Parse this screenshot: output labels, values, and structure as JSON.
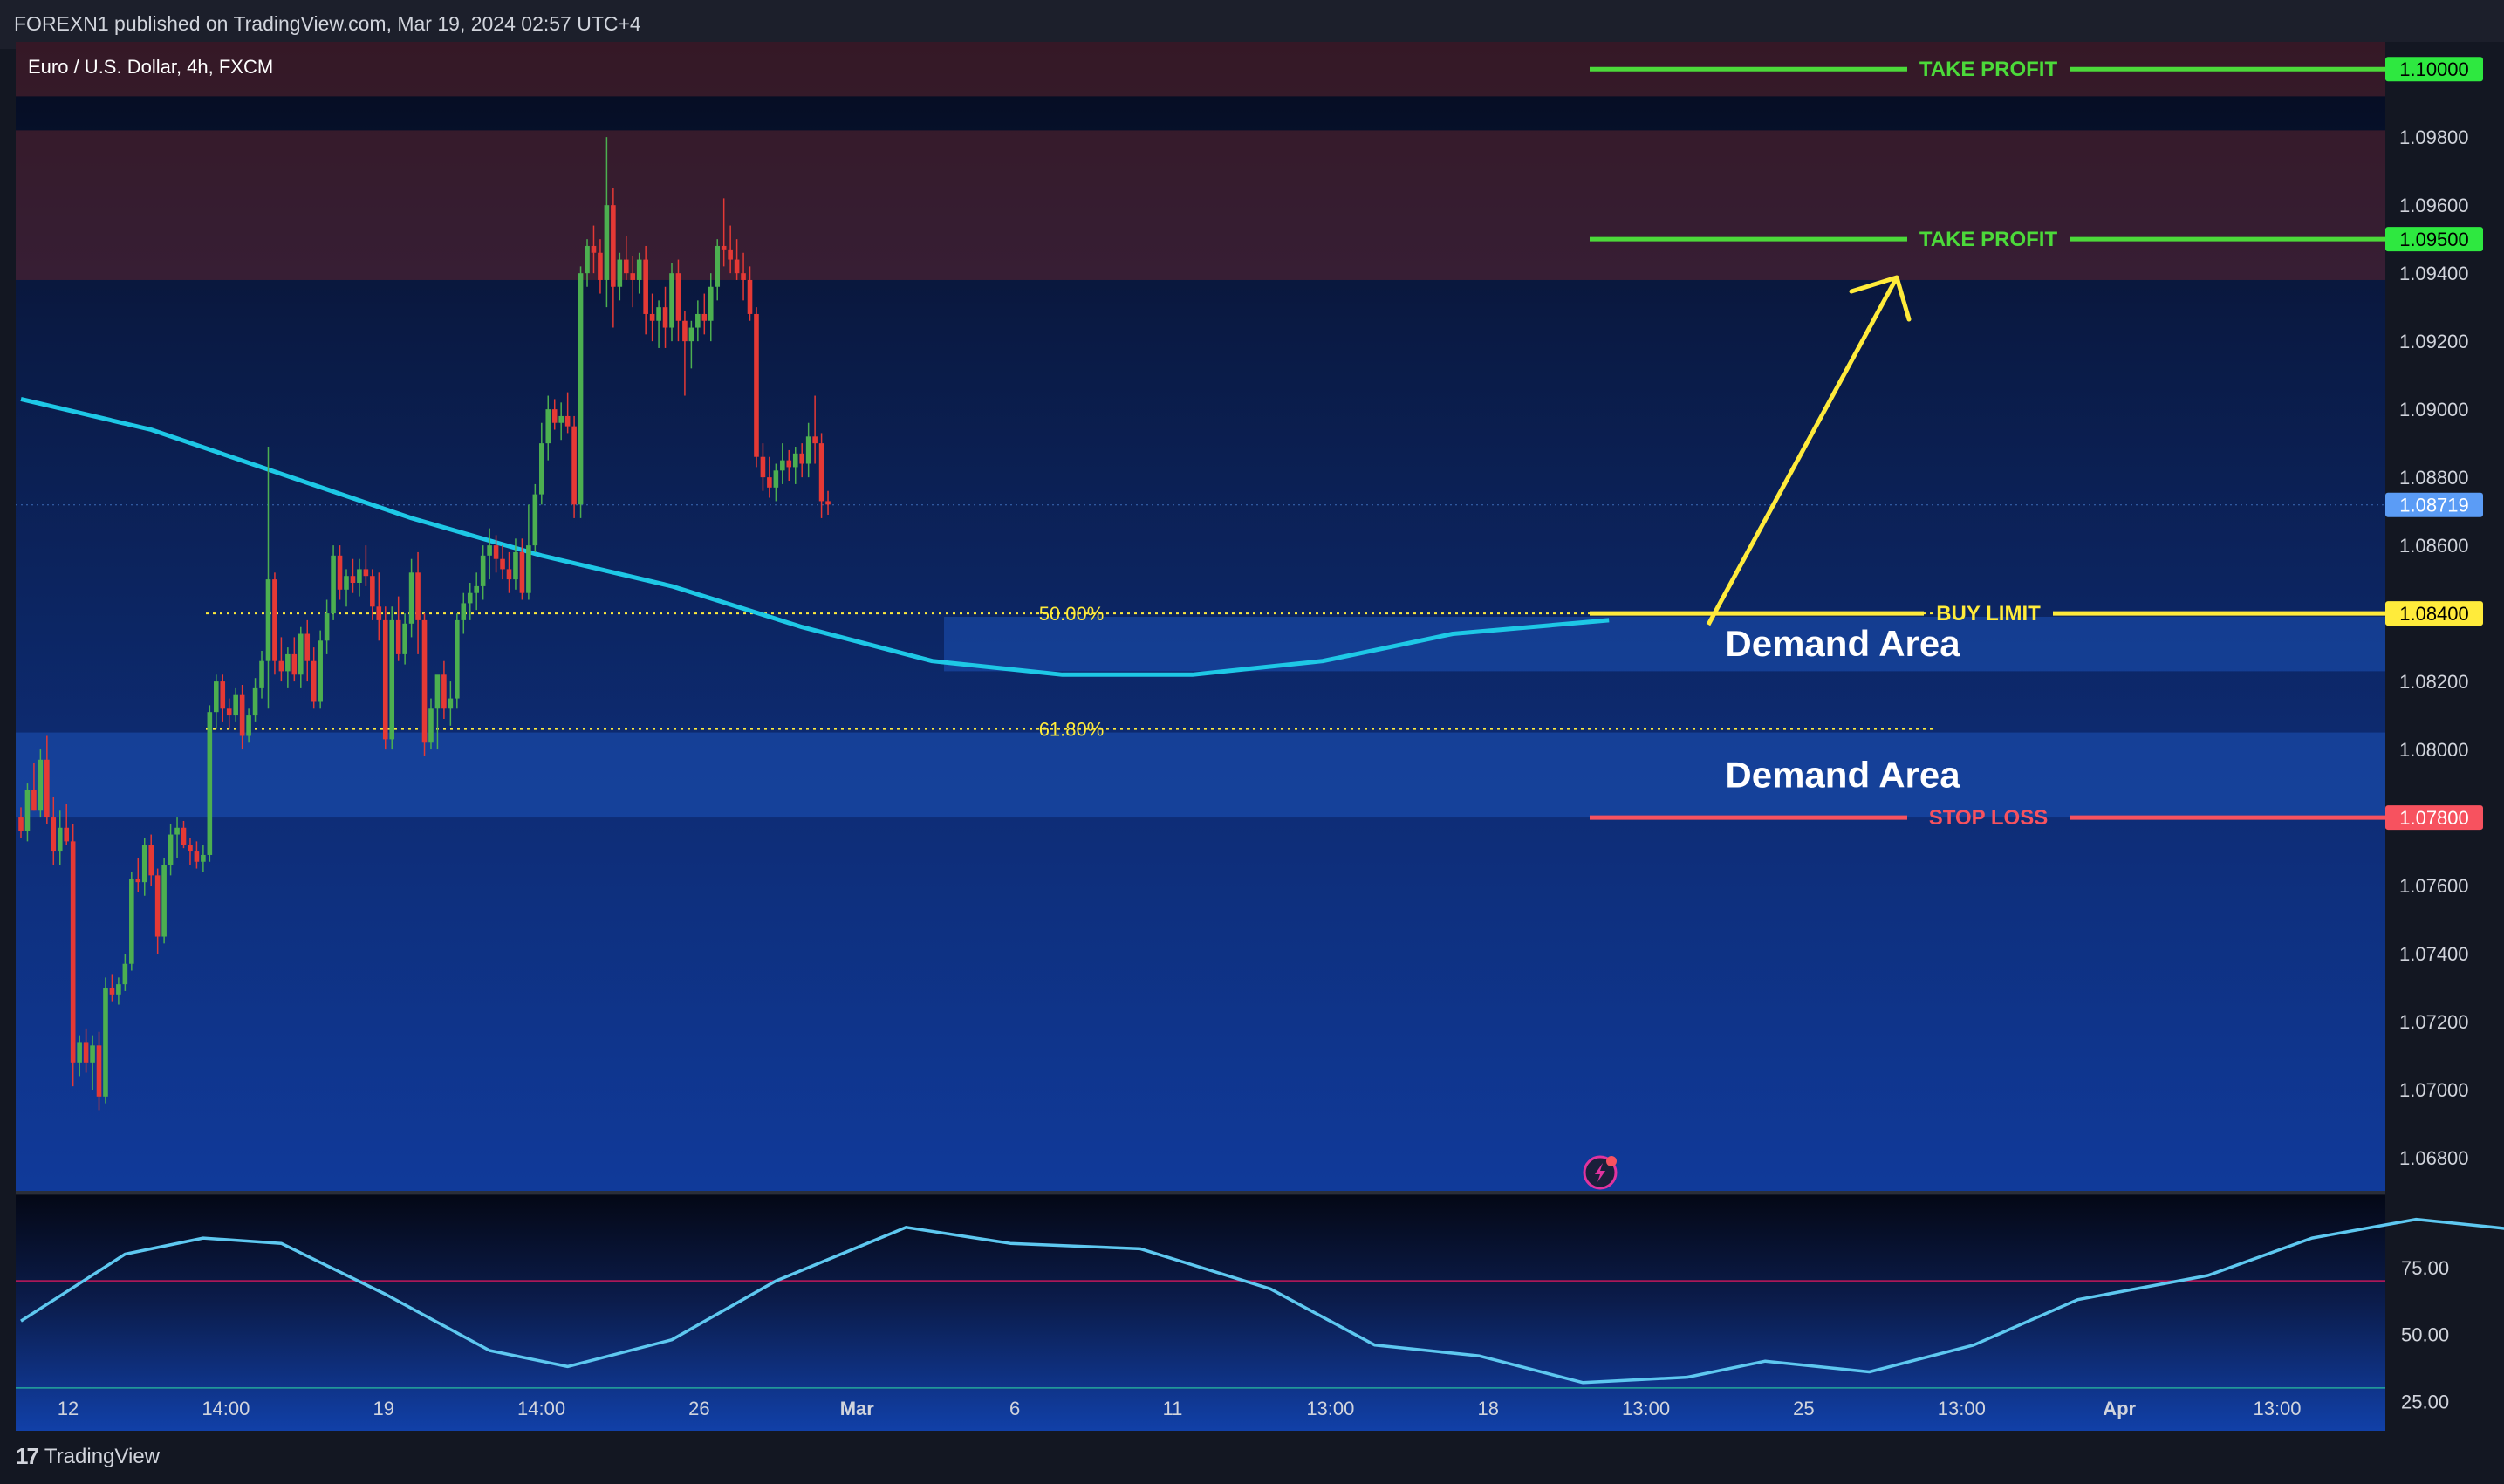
{
  "header": {
    "publisher_line": "FOREXN1 published on TradingView.com, Mar 19, 2024 02:57 UTC+4"
  },
  "footer": {
    "brand": "TradingView",
    "logo_icon": "tradingview-logo-icon"
  },
  "chart_data": {
    "type": "candlestick",
    "symbol_title": "Euro / U.S. Dollar, 4h, FXCM",
    "price_axis": {
      "ylim": [
        1.067,
        1.1008
      ],
      "ticks": [
        "1.09800",
        "1.09600",
        "1.09400",
        "1.09200",
        "1.09000",
        "1.08800",
        "1.08600",
        "1.08200",
        "1.08000",
        "1.07600",
        "1.07400",
        "1.07200",
        "1.07000",
        "1.06800"
      ]
    },
    "time_axis": {
      "labels": [
        "12",
        "14:00",
        "19",
        "14:00",
        "26",
        "Mar",
        "6",
        "11",
        "13:00",
        "18",
        "13:00",
        "25",
        "13:00",
        "Apr",
        "13:00"
      ],
      "bold_labels": [
        "Mar",
        "Apr"
      ]
    },
    "price_labels": [
      {
        "value": 1.1,
        "text": "1.10000",
        "color": "#2ee840",
        "text_color": "#000000"
      },
      {
        "value": 1.095,
        "text": "1.09500",
        "color": "#2ee840",
        "text_color": "#000000"
      },
      {
        "value": 1.08719,
        "text": "1.08719",
        "color": "#5b9cf6",
        "text_color": "#ffffff"
      },
      {
        "value": 1.084,
        "text": "1.08400",
        "color": "#ffeb3b",
        "text_color": "#000000"
      },
      {
        "value": 1.078,
        "text": "1.07800",
        "color": "#f7525f",
        "text_color": "#ffffff"
      }
    ],
    "levels": [
      {
        "label": "TAKE PROFIT",
        "value": 1.1,
        "color": "#4cd93a"
      },
      {
        "label": "TAKE PROFIT",
        "value": 1.095,
        "color": "#4cd93a"
      },
      {
        "label": "BUY LIMIT",
        "value": 1.084,
        "color": "#ffeb3b"
      },
      {
        "label": "STOP LOSS",
        "value": 1.078,
        "color": "#f7525f"
      }
    ],
    "zones": [
      {
        "label": "",
        "kind": "supply",
        "from": 1.0992,
        "to": 1.1008
      },
      {
        "label": "",
        "kind": "supply",
        "from": 1.0938,
        "to": 1.0982
      },
      {
        "label": "Demand Area",
        "kind": "demand",
        "from": 1.0823,
        "to": 1.0839
      },
      {
        "label": "Demand Area",
        "kind": "demand",
        "from": 1.078,
        "to": 1.0805
      }
    ],
    "fib_levels": [
      {
        "label": "50.00%",
        "value": 1.084
      },
      {
        "label": "61.80%",
        "value": 1.0806
      }
    ],
    "candles": [
      [
        1.078,
        1.0783,
        1.0774,
        1.0776
      ],
      [
        1.0776,
        1.079,
        1.0773,
        1.0788
      ],
      [
        1.0788,
        1.0796,
        1.0782,
        1.0782
      ],
      [
        1.0782,
        1.08,
        1.078,
        1.0797
      ],
      [
        1.0797,
        1.0804,
        1.0778,
        1.078
      ],
      [
        1.078,
        1.0786,
        1.0766,
        1.077
      ],
      [
        1.077,
        1.0782,
        1.0766,
        1.0777
      ],
      [
        1.0777,
        1.0784,
        1.0772,
        1.0773
      ],
      [
        1.0773,
        1.0778,
        1.0701,
        1.0708
      ],
      [
        1.0708,
        1.0716,
        1.0704,
        1.0714
      ],
      [
        1.0714,
        1.0718,
        1.0705,
        1.0708
      ],
      [
        1.0708,
        1.0716,
        1.07,
        1.0713
      ],
      [
        1.0713,
        1.0717,
        1.0694,
        1.0698
      ],
      [
        1.0698,
        1.0733,
        1.0696,
        1.073
      ],
      [
        1.073,
        1.0734,
        1.0726,
        1.0728
      ],
      [
        1.0728,
        1.0733,
        1.0725,
        1.0731
      ],
      [
        1.0731,
        1.074,
        1.0729,
        1.0737
      ],
      [
        1.0737,
        1.0764,
        1.0735,
        1.0762
      ],
      [
        1.0762,
        1.0768,
        1.0758,
        1.0761
      ],
      [
        1.0761,
        1.0774,
        1.0757,
        1.0772
      ],
      [
        1.0772,
        1.0775,
        1.076,
        1.0763
      ],
      [
        1.0763,
        1.0765,
        1.074,
        1.0745
      ],
      [
        1.0745,
        1.0768,
        1.0743,
        1.0766
      ],
      [
        1.0766,
        1.0778,
        1.0763,
        1.0775
      ],
      [
        1.0775,
        1.078,
        1.0768,
        1.0777
      ],
      [
        1.0777,
        1.0779,
        1.0771,
        1.0772
      ],
      [
        1.0772,
        1.0774,
        1.0766,
        1.077
      ],
      [
        1.077,
        1.0773,
        1.0765,
        1.0767
      ],
      [
        1.0767,
        1.0772,
        1.0764,
        1.0769
      ],
      [
        1.0769,
        1.0813,
        1.0767,
        1.0811
      ],
      [
        1.0811,
        1.0822,
        1.0806,
        1.082
      ],
      [
        1.082,
        1.0822,
        1.0808,
        1.0812
      ],
      [
        1.0812,
        1.0815,
        1.0806,
        1.081
      ],
      [
        1.081,
        1.0818,
        1.0808,
        1.0816
      ],
      [
        1.0816,
        1.0819,
        1.08,
        1.0804
      ],
      [
        1.0804,
        1.0812,
        1.0802,
        1.081
      ],
      [
        1.081,
        1.0821,
        1.0808,
        1.0818
      ],
      [
        1.0818,
        1.0829,
        1.0815,
        1.0826
      ],
      [
        1.0826,
        1.0889,
        1.0812,
        1.085
      ],
      [
        1.085,
        1.0852,
        1.0822,
        1.0826
      ],
      [
        1.0826,
        1.0833,
        1.082,
        1.0823
      ],
      [
        1.0823,
        1.083,
        1.0818,
        1.0828
      ],
      [
        1.0828,
        1.0833,
        1.082,
        1.0822
      ],
      [
        1.0822,
        1.0836,
        1.0818,
        1.0834
      ],
      [
        1.0834,
        1.0838,
        1.082,
        1.0826
      ],
      [
        1.0826,
        1.083,
        1.0812,
        1.0814
      ],
      [
        1.0814,
        1.0835,
        1.0812,
        1.0832
      ],
      [
        1.0832,
        1.0844,
        1.0828,
        1.084
      ],
      [
        1.084,
        1.086,
        1.0838,
        1.0857
      ],
      [
        1.0857,
        1.086,
        1.0844,
        1.0847
      ],
      [
        1.0847,
        1.0853,
        1.0842,
        1.0851
      ],
      [
        1.0851,
        1.0856,
        1.0846,
        1.0849
      ],
      [
        1.0849,
        1.0856,
        1.0845,
        1.0853
      ],
      [
        1.0853,
        1.086,
        1.0848,
        1.0851
      ],
      [
        1.0851,
        1.0853,
        1.0838,
        1.0842
      ],
      [
        1.0842,
        1.0852,
        1.0832,
        1.0838
      ],
      [
        1.0838,
        1.0842,
        1.08,
        1.0803
      ],
      [
        1.0803,
        1.0842,
        1.08,
        1.0838
      ],
      [
        1.0838,
        1.0845,
        1.0826,
        1.0828
      ],
      [
        1.0828,
        1.084,
        1.0825,
        1.0837
      ],
      [
        1.0837,
        1.0856,
        1.0833,
        1.0852
      ],
      [
        1.0852,
        1.0858,
        1.0828,
        1.0838
      ],
      [
        1.0838,
        1.084,
        1.0798,
        1.0802
      ],
      [
        1.0802,
        1.0815,
        1.08,
        1.0812
      ],
      [
        1.0812,
        1.082,
        1.08,
        1.0822
      ],
      [
        1.0822,
        1.0826,
        1.0809,
        1.0812
      ],
      [
        1.0812,
        1.082,
        1.0807,
        1.0815
      ],
      [
        1.0815,
        1.084,
        1.0812,
        1.0838
      ],
      [
        1.0838,
        1.0846,
        1.0834,
        1.0843
      ],
      [
        1.0843,
        1.0849,
        1.0838,
        1.0846
      ],
      [
        1.0846,
        1.0852,
        1.0841,
        1.0848
      ],
      [
        1.0848,
        1.086,
        1.0844,
        1.0857
      ],
      [
        1.0857,
        1.0865,
        1.085,
        1.086
      ],
      [
        1.086,
        1.0863,
        1.0852,
        1.0856
      ],
      [
        1.0856,
        1.086,
        1.085,
        1.0853
      ],
      [
        1.0853,
        1.0858,
        1.0846,
        1.085
      ],
      [
        1.085,
        1.0862,
        1.0847,
        1.0858
      ],
      [
        1.0858,
        1.0862,
        1.0844,
        1.0846
      ],
      [
        1.0846,
        1.0872,
        1.0844,
        1.086
      ],
      [
        1.086,
        1.0878,
        1.0858,
        1.0875
      ],
      [
        1.0875,
        1.0896,
        1.0872,
        1.089
      ],
      [
        1.089,
        1.0904,
        1.0885,
        1.09
      ],
      [
        1.09,
        1.0903,
        1.0894,
        1.0896
      ],
      [
        1.0896,
        1.0902,
        1.0891,
        1.0898
      ],
      [
        1.0898,
        1.0905,
        1.0893,
        1.0895
      ],
      [
        1.0895,
        1.0898,
        1.0868,
        1.0872
      ],
      [
        1.0872,
        1.0942,
        1.0868,
        1.094
      ],
      [
        1.094,
        1.095,
        1.0936,
        1.0948
      ],
      [
        1.0948,
        1.0954,
        1.094,
        1.0946
      ],
      [
        1.0946,
        1.095,
        1.0934,
        1.0938
      ],
      [
        1.0938,
        1.098,
        1.093,
        1.096
      ],
      [
        1.096,
        1.0965,
        1.0924,
        1.0936
      ],
      [
        1.0936,
        1.0946,
        1.0932,
        1.0944
      ],
      [
        1.0944,
        1.0951,
        1.0938,
        1.094
      ],
      [
        1.094,
        1.0945,
        1.093,
        1.0938
      ],
      [
        1.0938,
        1.0946,
        1.0934,
        1.0944
      ],
      [
        1.0944,
        1.0948,
        1.0922,
        1.0928
      ],
      [
        1.0928,
        1.0934,
        1.092,
        1.0926
      ],
      [
        1.0926,
        1.0932,
        1.0918,
        1.093
      ],
      [
        1.093,
        1.0936,
        1.0918,
        1.0924
      ],
      [
        1.0924,
        1.0943,
        1.092,
        1.094
      ],
      [
        1.094,
        1.0944,
        1.092,
        1.0926
      ],
      [
        1.0926,
        1.0929,
        1.0904,
        1.092
      ],
      [
        1.092,
        1.0926,
        1.0912,
        1.0924
      ],
      [
        1.0924,
        1.0932,
        1.092,
        1.0928
      ],
      [
        1.0928,
        1.0934,
        1.0922,
        1.0926
      ],
      [
        1.0926,
        1.094,
        1.092,
        1.0936
      ],
      [
        1.0936,
        1.095,
        1.0932,
        1.0948
      ],
      [
        1.0948,
        1.0962,
        1.0942,
        1.0947
      ],
      [
        1.0947,
        1.0954,
        1.094,
        1.0944
      ],
      [
        1.0944,
        1.095,
        1.0938,
        1.094
      ],
      [
        1.094,
        1.0946,
        1.0932,
        1.0938
      ],
      [
        1.0938,
        1.0942,
        1.0926,
        1.0928
      ],
      [
        1.0928,
        1.093,
        1.0883,
        1.0886
      ],
      [
        1.0886,
        1.089,
        1.0876,
        1.088
      ],
      [
        1.088,
        1.0886,
        1.0874,
        1.0877
      ],
      [
        1.0877,
        1.0884,
        1.0873,
        1.0882
      ],
      [
        1.0882,
        1.089,
        1.0878,
        1.0885
      ],
      [
        1.0885,
        1.0888,
        1.0879,
        1.0883
      ],
      [
        1.0883,
        1.0889,
        1.0878,
        1.0887
      ],
      [
        1.0887,
        1.089,
        1.088,
        1.0884
      ],
      [
        1.0884,
        1.0896,
        1.088,
        1.0892
      ],
      [
        1.0892,
        1.0904,
        1.0884,
        1.089
      ],
      [
        1.089,
        1.0893,
        1.0868,
        1.0873
      ],
      [
        1.0873,
        1.0876,
        1.0869,
        1.0872
      ]
    ],
    "ema": [
      [
        0,
        1.0903
      ],
      [
        20,
        1.0894
      ],
      [
        40,
        1.0881
      ],
      [
        60,
        1.0868
      ],
      [
        80,
        1.0857
      ],
      [
        100,
        1.0848
      ],
      [
        120,
        1.0836
      ],
      [
        140,
        1.0826
      ],
      [
        160,
        1.0822
      ],
      [
        180,
        1.0822
      ],
      [
        200,
        1.0826
      ],
      [
        220,
        1.0834
      ],
      [
        244,
        1.0838
      ]
    ],
    "oscillator": {
      "ylim": [
        14,
        102
      ],
      "ticks": [
        "75.00",
        "50.00",
        "25.00"
      ],
      "bands": [
        70,
        30
      ],
      "values": [
        [
          0,
          55
        ],
        [
          16,
          80
        ],
        [
          28,
          86
        ],
        [
          40,
          84
        ],
        [
          56,
          65
        ],
        [
          72,
          44
        ],
        [
          84,
          38
        ],
        [
          100,
          48
        ],
        [
          116,
          70
        ],
        [
          136,
          90
        ],
        [
          152,
          84
        ],
        [
          172,
          82
        ],
        [
          192,
          67
        ],
        [
          208,
          46
        ],
        [
          224,
          42
        ],
        [
          240,
          32
        ],
        [
          256,
          34
        ],
        [
          268,
          40
        ],
        [
          284,
          36
        ],
        [
          300,
          46
        ],
        [
          316,
          63
        ],
        [
          336,
          72
        ],
        [
          352,
          86
        ],
        [
          368,
          93
        ],
        [
          380,
          90
        ],
        [
          396,
          86
        ],
        [
          412,
          70
        ],
        [
          428,
          53
        ],
        [
          444,
          38
        ],
        [
          460,
          32
        ],
        [
          476,
          28
        ],
        [
          490,
          26
        ],
        [
          504,
          27
        ],
        [
          518,
          25
        ],
        [
          532,
          24
        ],
        [
          546,
          26
        ],
        [
          558,
          22
        ]
      ]
    }
  }
}
